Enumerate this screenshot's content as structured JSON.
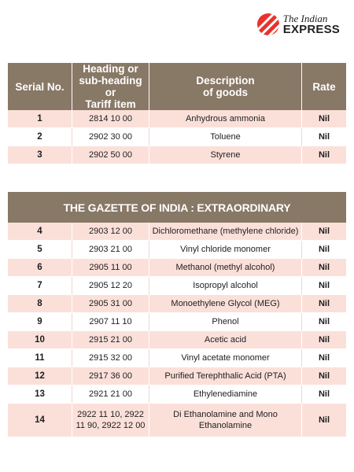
{
  "brand": {
    "line1": "The Indian",
    "line2": "EXPRESS"
  },
  "table1": {
    "headers": {
      "serial": "Serial No.",
      "heading_l1": "Heading or",
      "heading_l2": "sub-heading or",
      "heading_l3": "Tariff item",
      "desc_l1": "Description",
      "desc_l2": "of goods",
      "rate": "Rate"
    },
    "rows": [
      {
        "serial": "1",
        "code": "2814 10 00",
        "description": "Anhydrous ammonia",
        "rate": "Nil"
      },
      {
        "serial": "2",
        "code": "2902 30 00",
        "description": "Toluene",
        "rate": "Nil"
      },
      {
        "serial": "3",
        "code": "2902 50 00",
        "description": "Styrene",
        "rate": "Nil"
      }
    ]
  },
  "table2": {
    "title": "THE GAZETTE OF INDIA : EXTRAORDINARY",
    "rows": [
      {
        "serial": "4",
        "code": "2903 12 00",
        "description": "Dichloromethane (methylene chloride)",
        "rate": "Nil"
      },
      {
        "serial": "5",
        "code": "2903 21 00",
        "description": "Vinyl chloride monomer",
        "rate": "Nil"
      },
      {
        "serial": "6",
        "code": "2905 11 00",
        "description": "Methanol (methyl alcohol)",
        "rate": "Nil"
      },
      {
        "serial": "7",
        "code": "2905 12 20",
        "description": "Isopropyl alcohol",
        "rate": "Nil"
      },
      {
        "serial": "8",
        "code": "2905 31 00",
        "description": "Monoethylene Glycol (MEG)",
        "rate": "Nil"
      },
      {
        "serial": "9",
        "code": "2907 11 10",
        "description": "Phenol",
        "rate": "Nil"
      },
      {
        "serial": "10",
        "code": "2915 21 00",
        "description": "Acetic acid",
        "rate": "Nil"
      },
      {
        "serial": "11",
        "code": "2915 32 00",
        "description": "Vinyl acetate monomer",
        "rate": "Nil"
      },
      {
        "serial": "12",
        "code": "2917 36 00",
        "description": "Purified Terephthalic Acid (PTA)",
        "rate": "Nil"
      },
      {
        "serial": "13",
        "code": "2921 21 00",
        "description": "Ethylenediamine",
        "rate": "Nil"
      },
      {
        "serial": "14",
        "code": "2922 11 10, 2922 11 90, 2922 12 00",
        "description": "Di Ethanolamine and Mono Ethanolamine",
        "rate": "Nil"
      }
    ]
  }
}
